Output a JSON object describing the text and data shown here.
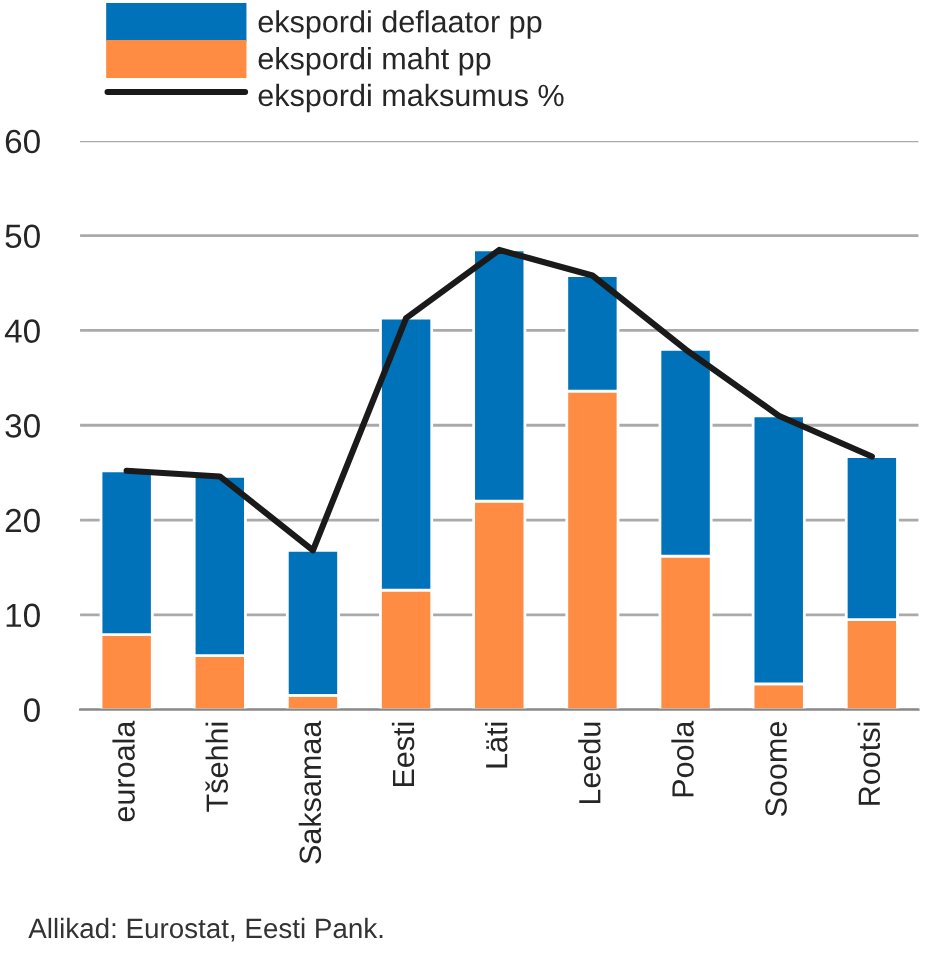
{
  "chart_data": {
    "type": "bar",
    "stacked": true,
    "categories": [
      "euroala",
      "Tšehhi",
      "Saksamaa",
      "Eesti",
      "Läti",
      "Leedu",
      "Poola",
      "Soome",
      "Rootsi"
    ],
    "series": [
      {
        "name": "ekspordi maht pp",
        "color": "#ff8c42",
        "values": [
          7.9,
          5.7,
          1.5,
          12.6,
          22.0,
          33.6,
          16.2,
          2.7,
          9.5
        ]
      },
      {
        "name": "ekspordi deflaator pp",
        "color": "#0072b9",
        "values": [
          17.3,
          18.9,
          15.3,
          28.7,
          26.5,
          12.2,
          21.8,
          28.3,
          17.2
        ]
      },
      {
        "name": "ekspordi maksumus %",
        "type": "line",
        "color": "#1a1a1a",
        "values": [
          25.2,
          24.6,
          16.8,
          41.3,
          48.5,
          45.8,
          38.0,
          31.0,
          26.7
        ]
      }
    ],
    "ylim": [
      0,
      60
    ],
    "yticks": [
      0,
      10,
      20,
      30,
      40,
      50,
      60
    ],
    "grid": "y",
    "legend": "top left",
    "marker": "none",
    "annotations": [
      "Allikad: Eurostat, Eesti Pank."
    ]
  }
}
